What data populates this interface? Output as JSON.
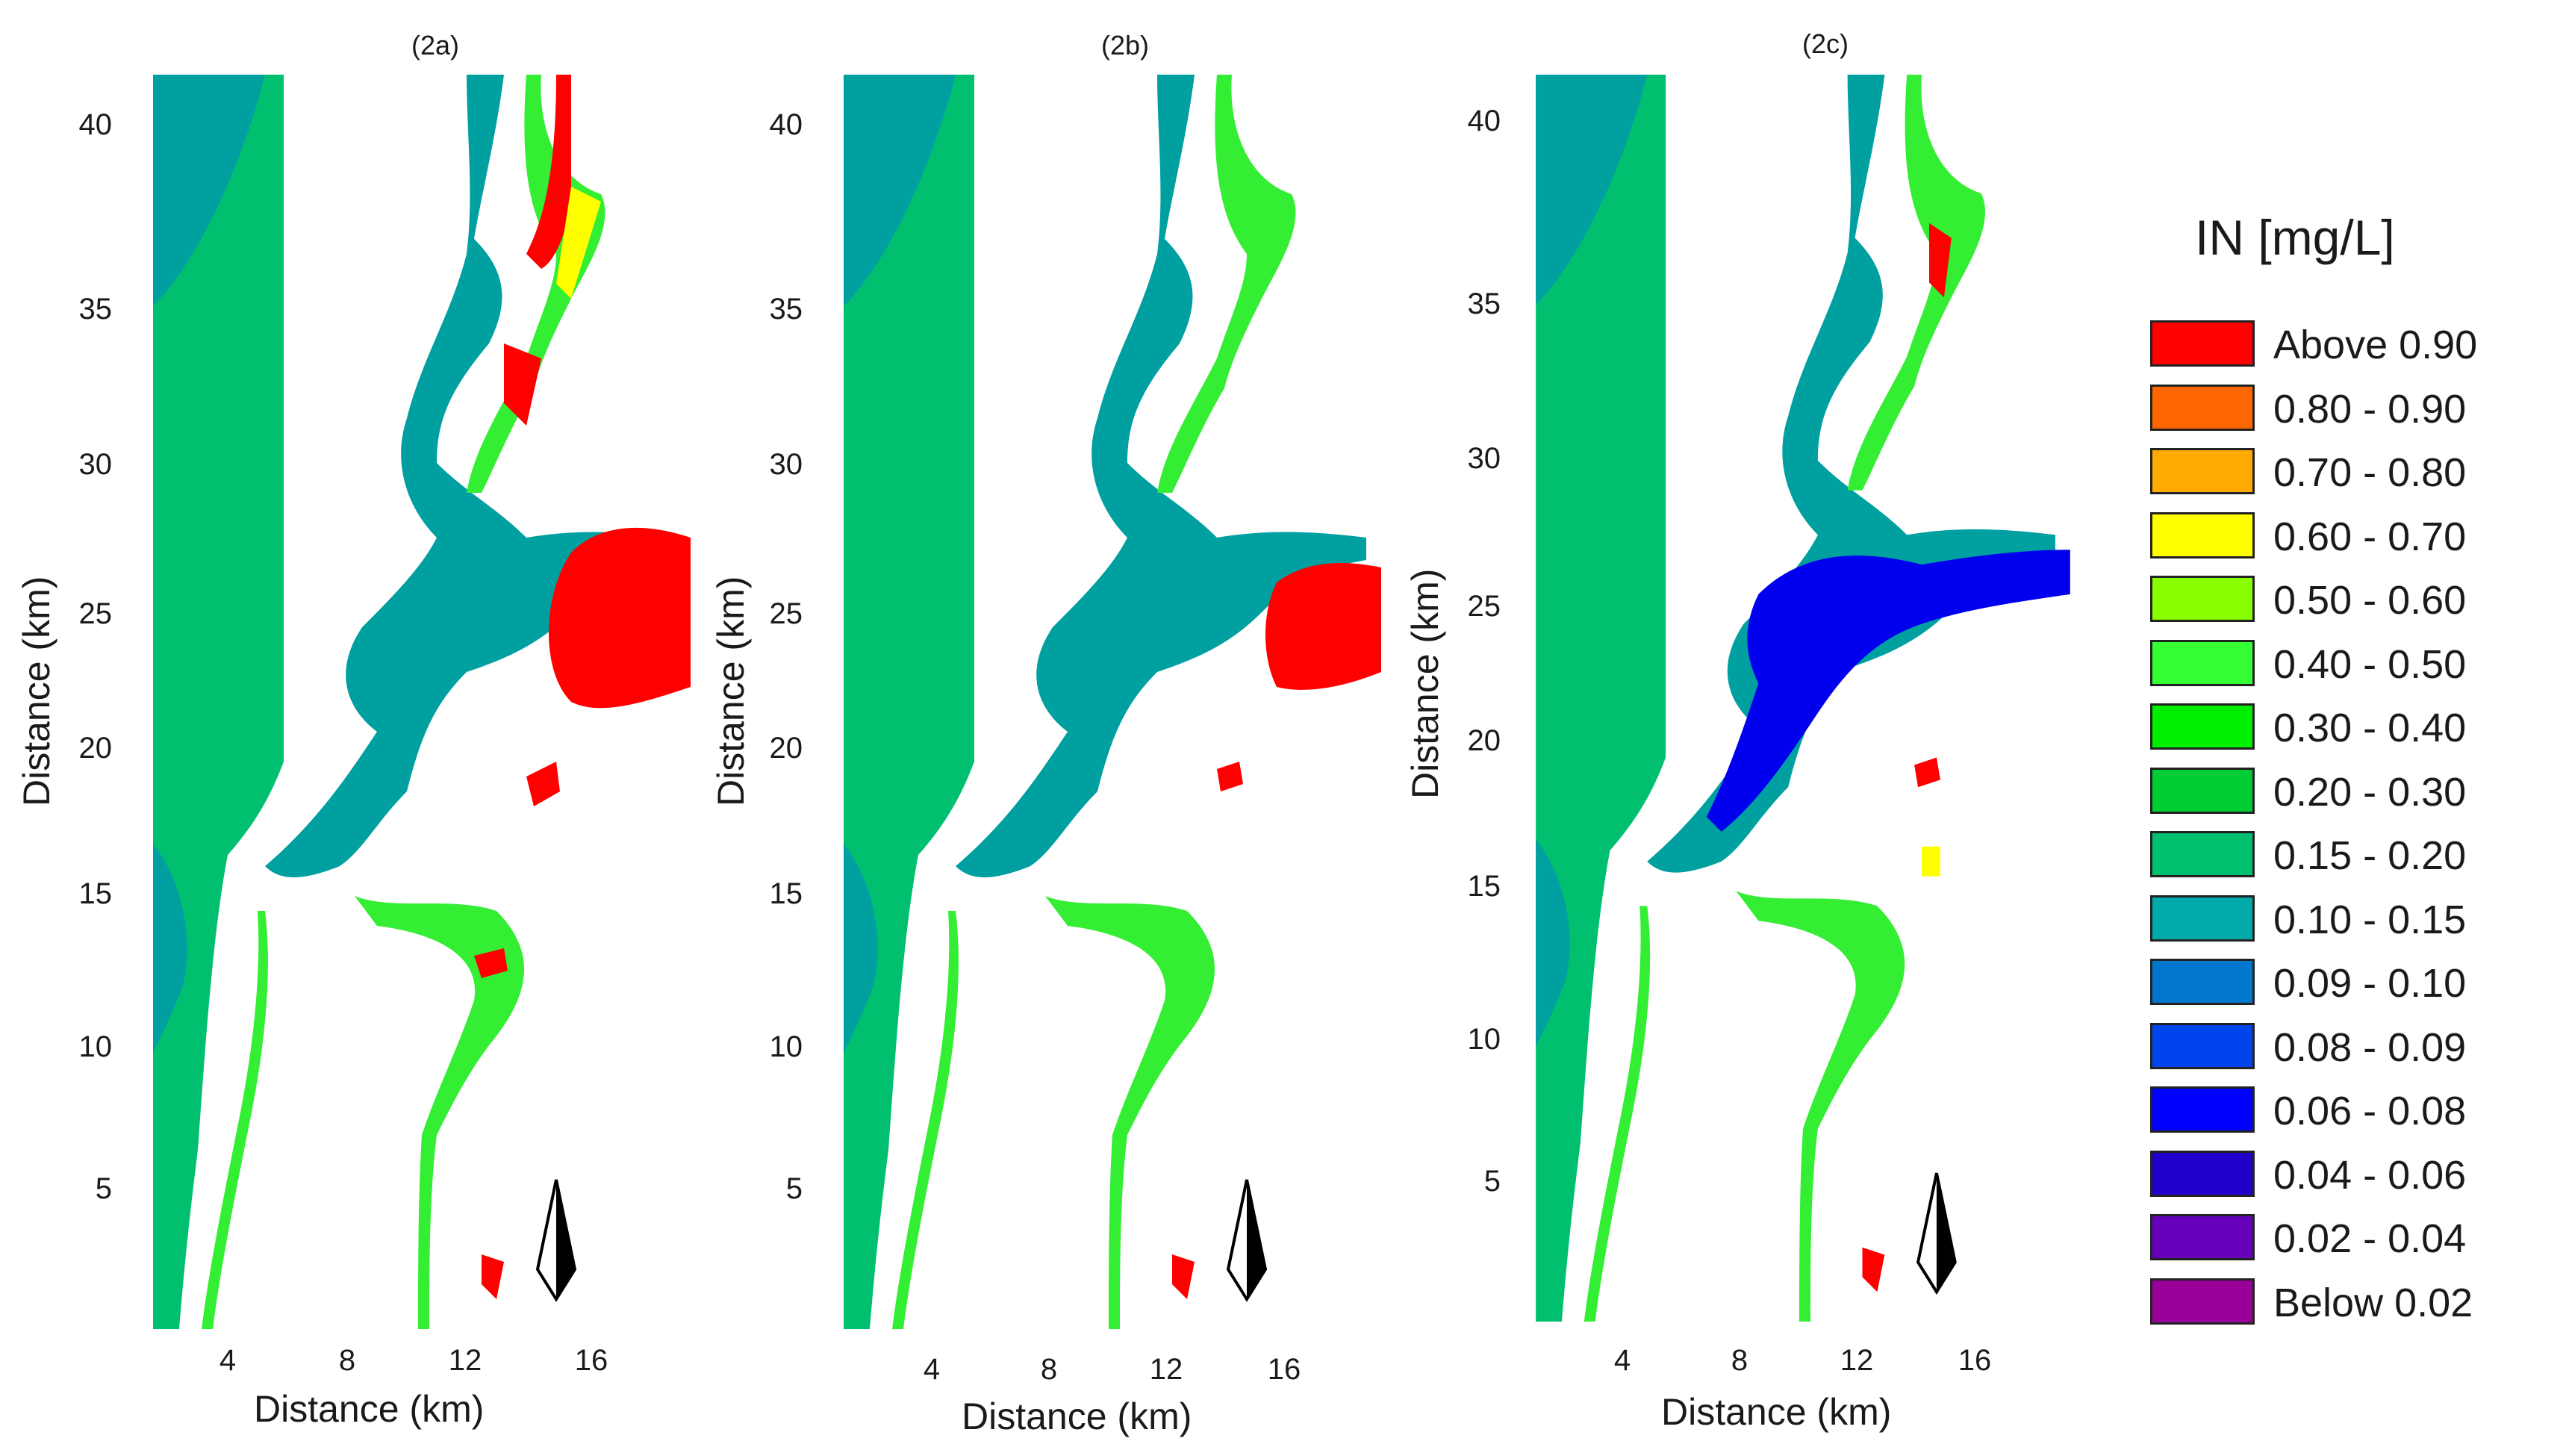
{
  "panels": [
    {
      "id": "2a",
      "title": "(2a)",
      "ylabel": "Distance (km)",
      "xlabel": "Distance (km)",
      "yticks": [
        "40",
        "35",
        "30",
        "25",
        "20",
        "15",
        "10",
        "5"
      ],
      "xticks": [
        "4",
        "8",
        "12",
        "16"
      ]
    },
    {
      "id": "2b",
      "title": "(2b)",
      "ylabel": "Distance (km)",
      "xlabel": "Distance (km)",
      "yticks": [
        "40",
        "35",
        "30",
        "25",
        "20",
        "15",
        "10",
        "5"
      ],
      "xticks": [
        "4",
        "8",
        "12",
        "16"
      ]
    },
    {
      "id": "2c",
      "title": "(2c)",
      "ylabel": "Distance (km)",
      "xlabel": "Distance (km)",
      "yticks": [
        "40",
        "35",
        "30",
        "25",
        "20",
        "15",
        "10",
        "5"
      ],
      "xticks": [
        "4",
        "8",
        "12",
        "16"
      ]
    }
  ],
  "legend": {
    "title": "IN [mg/L]",
    "items": [
      {
        "label": "Above 0.90",
        "color": "#ff0000"
      },
      {
        "label": "0.80 - 0.90",
        "color": "#ff6600"
      },
      {
        "label": "0.70 - 0.80",
        "color": "#ffaa00"
      },
      {
        "label": "0.60 - 0.70",
        "color": "#ffff00"
      },
      {
        "label": "0.50 - 0.60",
        "color": "#88ff00"
      },
      {
        "label": "0.40 - 0.50",
        "color": "#33ff33"
      },
      {
        "label": "0.30 - 0.40",
        "color": "#00ee00"
      },
      {
        "label": "0.20 - 0.30",
        "color": "#00cc33"
      },
      {
        "label": "0.15 - 0.20",
        "color": "#00c070"
      },
      {
        "label": "0.10 - 0.15",
        "color": "#00aaaa"
      },
      {
        "label": "0.09 - 0.10",
        "color": "#0077cc"
      },
      {
        "label": "0.08 - 0.09",
        "color": "#0044ee"
      },
      {
        "label": "0.06 - 0.08",
        "color": "#0000ff"
      },
      {
        "label": "0.04 - 0.06",
        "color": "#2200cc"
      },
      {
        "label": "0.02 - 0.04",
        "color": "#6600bb"
      },
      {
        "label": "Below 0.02",
        "color": "#990099"
      }
    ]
  },
  "map_colors": {
    "ocean": "#00c070",
    "offshore": "#00a0a0",
    "river_main": "#33ee33",
    "delta_a": "#00a0a0",
    "delta_b": "#00a0a0",
    "delta_c": "#0000ee",
    "hot": "#ff0000",
    "warm": "#ffff00"
  }
}
